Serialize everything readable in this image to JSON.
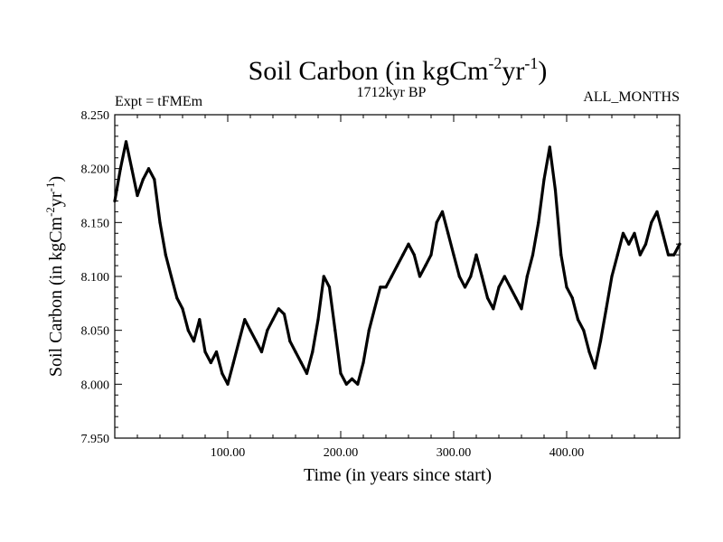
{
  "header": {
    "title_main": "Soil Carbon (in kgCm",
    "title_sup1": "-2",
    "title_mid": "yr",
    "title_sup2": "-1",
    "title_end": ")",
    "expt_label": "Expt = tFMEm",
    "period_label": "1712kyr BP",
    "months_label": "ALL_MONTHS"
  },
  "chart_data": {
    "type": "line",
    "title": "Soil Carbon (in kgCm-2yr-1)",
    "xlabel": "Time (in years since start)",
    "ylabel": "Soil Carbon (in kgCm-2yr-1)",
    "xlim": [
      0,
      500
    ],
    "ylim": [
      7.95,
      8.25
    ],
    "x_ticks": [
      100,
      200,
      300,
      400
    ],
    "x_tick_labels": [
      "100.00",
      "200.00",
      "300.00",
      "400.00"
    ],
    "y_ticks": [
      7.95,
      8.0,
      8.05,
      8.1,
      8.15,
      8.2,
      8.25
    ],
    "y_tick_labels": [
      "7.950",
      "8.000",
      "8.050",
      "8.100",
      "8.150",
      "8.200",
      "8.250"
    ],
    "line_color": "#000000",
    "series": [
      {
        "name": "Soil Carbon",
        "x": [
          0,
          5,
          10,
          15,
          20,
          25,
          30,
          35,
          40,
          45,
          50,
          55,
          60,
          65,
          70,
          75,
          80,
          85,
          90,
          95,
          100,
          105,
          110,
          115,
          120,
          125,
          130,
          135,
          140,
          145,
          150,
          155,
          160,
          165,
          170,
          175,
          180,
          185,
          190,
          195,
          200,
          205,
          210,
          215,
          220,
          225,
          230,
          235,
          240,
          245,
          250,
          255,
          260,
          265,
          270,
          275,
          280,
          285,
          290,
          295,
          300,
          305,
          310,
          315,
          320,
          325,
          330,
          335,
          340,
          345,
          350,
          355,
          360,
          365,
          370,
          375,
          380,
          385,
          390,
          395,
          400,
          405,
          410,
          415,
          420,
          425,
          430,
          435,
          440,
          445,
          450,
          455,
          460,
          465,
          470,
          475,
          480,
          485,
          490,
          495,
          500
        ],
        "values": [
          8.17,
          8.2,
          8.225,
          8.2,
          8.175,
          8.19,
          8.2,
          8.19,
          8.15,
          8.12,
          8.1,
          8.08,
          8.07,
          8.05,
          8.04,
          8.06,
          8.03,
          8.02,
          8.03,
          8.01,
          8.0,
          8.02,
          8.04,
          8.06,
          8.05,
          8.04,
          8.03,
          8.05,
          8.06,
          8.07,
          8.065,
          8.04,
          8.03,
          8.02,
          8.01,
          8.03,
          8.06,
          8.1,
          8.09,
          8.05,
          8.01,
          8.0,
          8.005,
          8.0,
          8.02,
          8.05,
          8.07,
          8.09,
          8.09,
          8.1,
          8.11,
          8.12,
          8.13,
          8.12,
          8.1,
          8.11,
          8.12,
          8.15,
          8.16,
          8.14,
          8.12,
          8.1,
          8.09,
          8.1,
          8.12,
          8.1,
          8.08,
          8.07,
          8.09,
          8.1,
          8.09,
          8.08,
          8.07,
          8.1,
          8.12,
          8.15,
          8.19,
          8.22,
          8.18,
          8.12,
          8.09,
          8.08,
          8.06,
          8.05,
          8.03,
          8.015,
          8.04,
          8.07,
          8.1,
          8.12,
          8.14,
          8.13,
          8.14,
          8.12,
          8.13,
          8.15,
          8.16,
          8.14,
          8.12,
          8.12,
          8.13
        ]
      }
    ]
  }
}
